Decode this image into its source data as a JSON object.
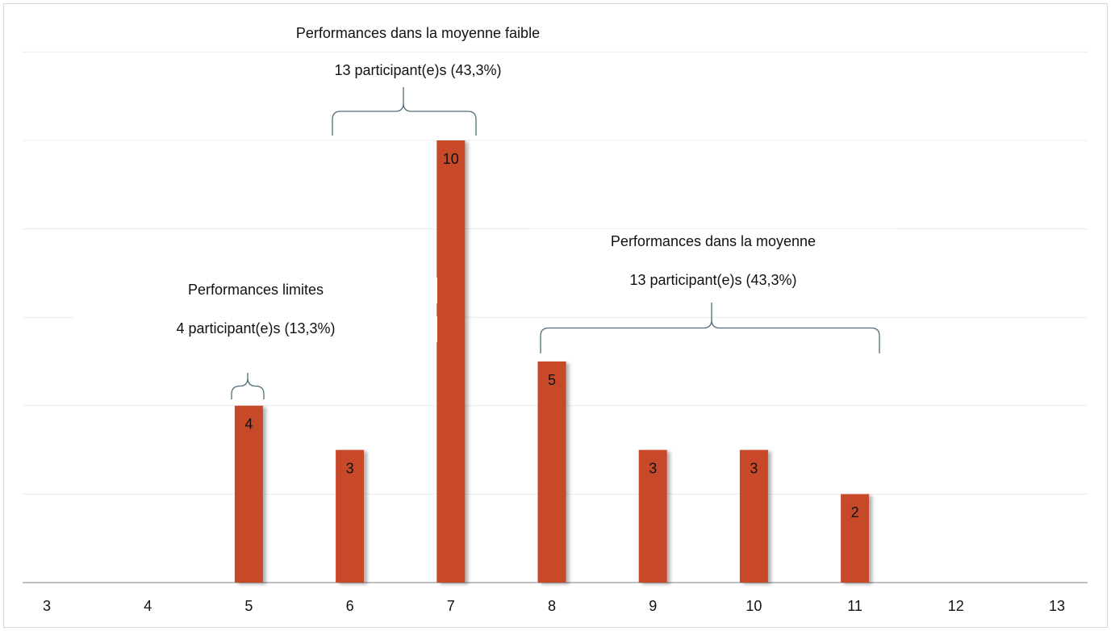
{
  "chart_data": {
    "type": "bar",
    "categories": [
      "3",
      "4",
      "5",
      "6",
      "7",
      "8",
      "9",
      "10",
      "11",
      "12",
      "13"
    ],
    "values": [
      null,
      null,
      4,
      3,
      10,
      5,
      3,
      3,
      2,
      null,
      null
    ],
    "color": "#c8492a",
    "ylim": [
      0,
      12
    ],
    "yticks": [
      0,
      2,
      4,
      6,
      8,
      10,
      12
    ],
    "grid": true,
    "annotations": [
      [
        "Performances limites",
        "4 participant(e)s (13,3%)"
      ],
      [
        "Performances dans la moyenne faible",
        "13 participant(e)s (43,3%)"
      ],
      [
        "Performances dans la moyenne",
        "13 participant(e)s (43,3%)"
      ]
    ]
  }
}
